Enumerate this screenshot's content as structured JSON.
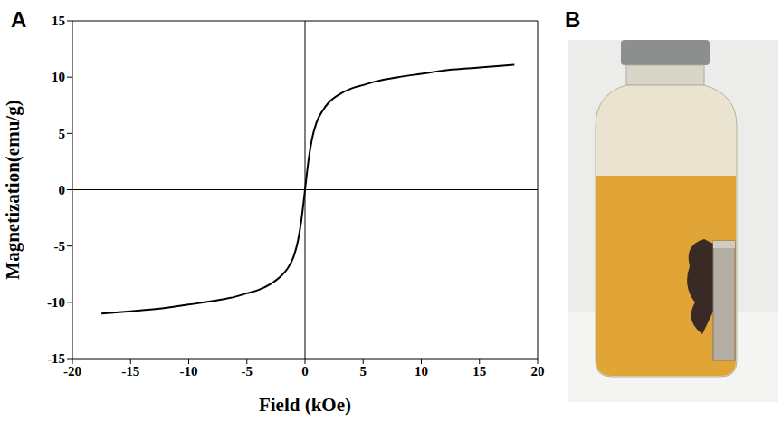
{
  "panel_labels": [
    "A",
    "B"
  ],
  "chart_data": {
    "type": "line",
    "x_label": "Field (kOe)",
    "y_label": "Magnetization(emu/g)",
    "x": [
      -17.5,
      -15,
      -12,
      -10,
      -8,
      -6,
      -5,
      -4,
      -3,
      -2,
      -1.5,
      -1,
      -0.6,
      -0.3,
      0,
      0.3,
      0.6,
      1,
      1.5,
      2,
      3,
      4,
      5,
      6,
      8,
      10,
      12,
      15,
      18
    ],
    "values": [
      -11.0,
      -10.8,
      -10.5,
      -10.2,
      -9.9,
      -9.5,
      -9.2,
      -8.9,
      -8.4,
      -7.6,
      -7.0,
      -6.0,
      -4.5,
      -2.6,
      0,
      2.6,
      4.5,
      6.0,
      7.0,
      7.7,
      8.5,
      9.0,
      9.3,
      9.6,
      10.0,
      10.3,
      10.6,
      10.85,
      11.1
    ],
    "color": "#000000",
    "xlim": [
      -20,
      20
    ],
    "xticks": [
      -20,
      -15,
      -10,
      -5,
      0,
      5,
      10,
      15,
      20
    ],
    "ylim": [
      -15,
      15
    ],
    "yticks": [
      -15,
      -10,
      -5,
      0,
      5,
      10,
      15
    ],
    "grid": false
  }
}
